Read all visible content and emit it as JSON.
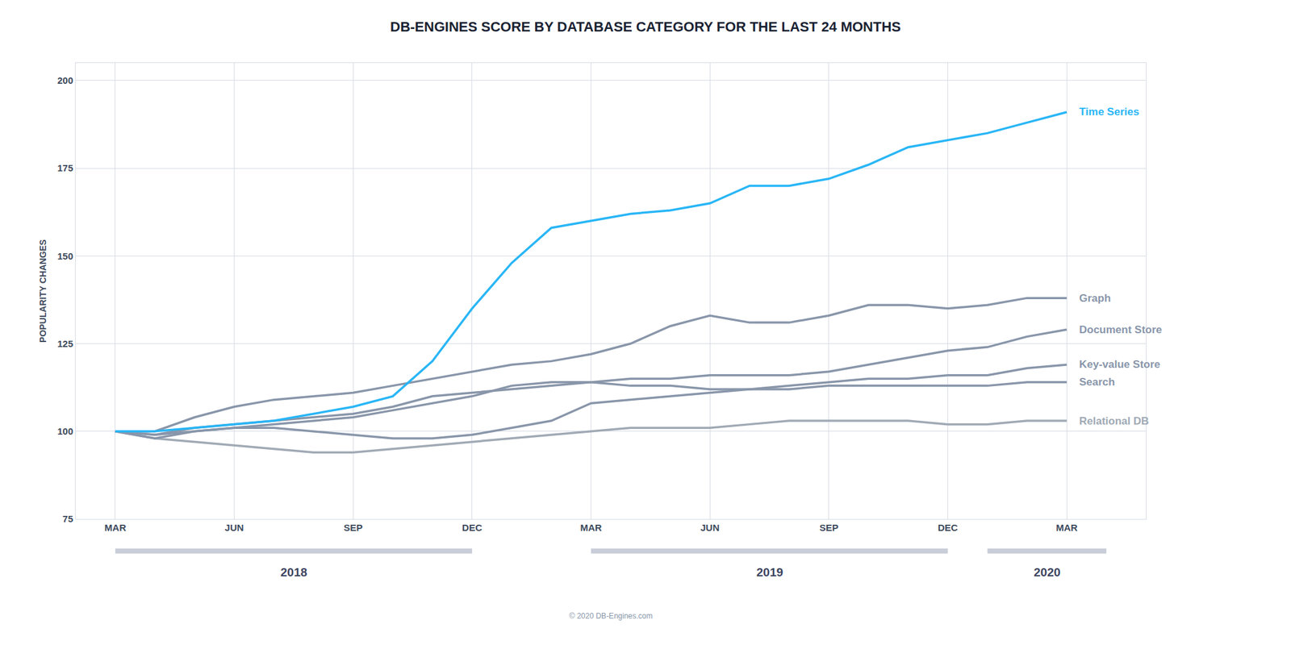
{
  "chart_data": {
    "type": "line",
    "title": "DB-ENGINES SCORE BY DATABASE CATEGORY FOR THE LAST 24 MONTHS",
    "y_label": "POPULARITY CHANGES",
    "footer": "© 2020 DB-Engines.com",
    "categories": [
      "MAR",
      null,
      null,
      "JUN",
      null,
      null,
      "SEP",
      null,
      null,
      "DEC",
      null,
      null,
      "MAR",
      null,
      null,
      "JUN",
      null,
      null,
      "SEP",
      null,
      null,
      "DEC",
      null,
      null,
      "MAR"
    ],
    "series": [
      {
        "name": "Relational DB",
        "color": "#a0aab5",
        "values": [
          100,
          98,
          97,
          96,
          95,
          94,
          94,
          95,
          96,
          97,
          98,
          99,
          100,
          101,
          101,
          101,
          102,
          103,
          103,
          103,
          103,
          102,
          102,
          103,
          103
        ]
      },
      {
        "name": "Search",
        "color": "#8996aa",
        "values": [
          100,
          99,
          100,
          101,
          101,
          100,
          99,
          98,
          98,
          99,
          101,
          103,
          108,
          109,
          110,
          111,
          112,
          112,
          113,
          113,
          113,
          113,
          113,
          114,
          114
        ]
      },
      {
        "name": "Key-value Store",
        "color": "#8996aa",
        "values": [
          100,
          98,
          100,
          101,
          102,
          103,
          104,
          106,
          108,
          110,
          113,
          114,
          114,
          113,
          113,
          112,
          112,
          113,
          114,
          115,
          115,
          116,
          116,
          118,
          119
        ]
      },
      {
        "name": "Document Store",
        "color": "#8996aa",
        "values": [
          100,
          99,
          101,
          102,
          103,
          104,
          105,
          107,
          110,
          111,
          112,
          113,
          114,
          115,
          115,
          116,
          116,
          116,
          117,
          119,
          121,
          123,
          124,
          127,
          129
        ]
      },
      {
        "name": "Graph",
        "color": "#8996aa",
        "values": [
          100,
          100,
          104,
          107,
          109,
          110,
          111,
          113,
          115,
          117,
          119,
          120,
          122,
          125,
          130,
          133,
          131,
          131,
          133,
          136,
          136,
          135,
          136,
          138,
          138
        ]
      },
      {
        "name": "Time Series",
        "color": "#29b6f6",
        "values": [
          100,
          100,
          101,
          102,
          103,
          105,
          107,
          110,
          120,
          135,
          148,
          158,
          160,
          162,
          163,
          165,
          170,
          170,
          172,
          176,
          181,
          183,
          185,
          188,
          191
        ]
      }
    ],
    "ylim": [
      75,
      205
    ],
    "yticks": [
      75,
      100,
      125,
      150,
      175,
      200
    ],
    "grid": true,
    "annotations": [
      {
        "text": "2018",
        "x_start": 0,
        "x_end": 9
      },
      {
        "text": "2019",
        "x_start": 12,
        "x_end": 21
      },
      {
        "text": "2020",
        "x_start": 22,
        "x_end": 25
      }
    ]
  }
}
